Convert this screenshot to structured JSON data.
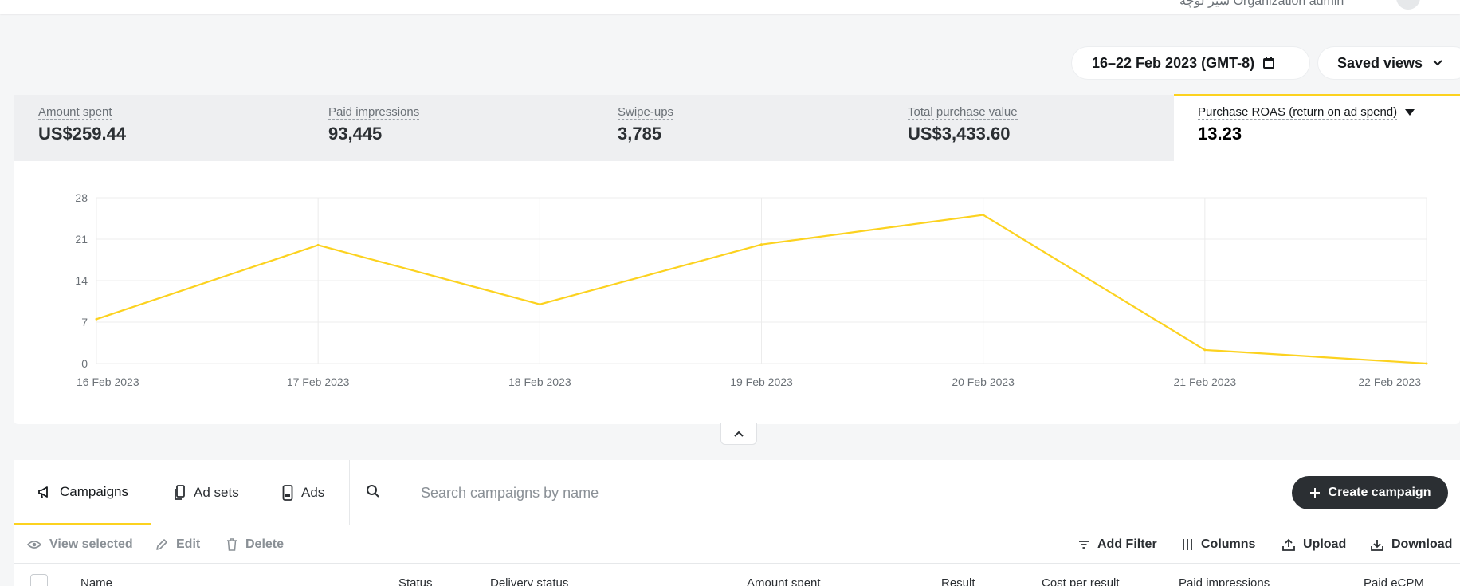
{
  "header": {
    "org_text": "شیر لوچه   Organization admin"
  },
  "date_range": {
    "label": "16–22 Feb 2023 (GMT-8)",
    "icon": "calendar-icon"
  },
  "saved_views": {
    "label": "Saved views",
    "icon": "chevron-down-icon"
  },
  "metrics": [
    {
      "label": "Amount spent",
      "value": "US$259.44"
    },
    {
      "label": "Paid impressions",
      "value": "93,445"
    },
    {
      "label": "Swipe-ups",
      "value": "3,785"
    },
    {
      "label": "Total purchase value",
      "value": "US$3,433.60"
    },
    {
      "label": "Purchase ROAS (return on ad spend)",
      "value": "13.23",
      "active": true
    }
  ],
  "chart_data": {
    "type": "line",
    "categories": [
      "16 Feb 2023",
      "17 Feb 2023",
      "18 Feb 2023",
      "19 Feb 2023",
      "20 Feb 2023",
      "21 Feb 2023",
      "22 Feb 2023"
    ],
    "series": [
      {
        "values": [
          7.5,
          20.0,
          10.0,
          20.1,
          25.1,
          2.3,
          0.0
        ],
        "color": "#fcd21f"
      }
    ],
    "y_ticks": [
      "0",
      "7",
      "14",
      "21",
      "28"
    ],
    "ylim": [
      0,
      28
    ],
    "grid": true
  },
  "tabs": [
    {
      "label": "Campaigns",
      "icon": "megaphone-icon",
      "active": true
    },
    {
      "label": "Ad sets",
      "icon": "copy-phone-icon"
    },
    {
      "label": "Ads",
      "icon": "phone-ad-icon"
    }
  ],
  "search": {
    "placeholder": "Search campaigns by name",
    "icon": "search-icon"
  },
  "create_button": {
    "label": "Create campaign",
    "icon": "plus-icon"
  },
  "actions_left": [
    {
      "label": "View selected",
      "icon": "eye-icon"
    },
    {
      "label": "Edit",
      "icon": "pencil-icon"
    },
    {
      "label": "Delete",
      "icon": "trash-icon"
    }
  ],
  "actions_right": [
    {
      "label": "Add Filter",
      "icon": "filter-icon"
    },
    {
      "label": "Columns",
      "icon": "columns-icon"
    },
    {
      "label": "Upload",
      "icon": "upload-icon"
    },
    {
      "label": "Download",
      "icon": "download-icon"
    }
  ],
  "table": {
    "columns": [
      "Name",
      "Status",
      "Delivery status",
      "Amount spent",
      "Result",
      "Cost per result",
      "Paid impressions",
      "Paid eCPM"
    ]
  },
  "colors": {
    "accent": "#fcd21f",
    "dark_button": "#2b2f33",
    "background": "#f5f6f7"
  }
}
